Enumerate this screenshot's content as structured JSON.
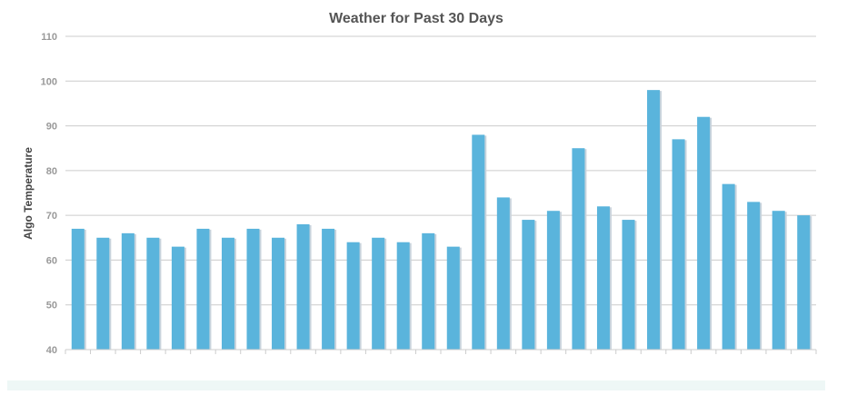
{
  "chart_data": {
    "type": "bar",
    "title": "Weather for Past 30 Days",
    "xlabel": "",
    "ylabel": "Algo Temperature",
    "ylim": [
      40,
      110
    ],
    "yticks": [
      40,
      50,
      60,
      70,
      80,
      90,
      100,
      110
    ],
    "grid": true,
    "legend": "none",
    "values": [
      67,
      65,
      66,
      65,
      63,
      67,
      65,
      67,
      65,
      68,
      67,
      64,
      65,
      64,
      66,
      63,
      88,
      74,
      69,
      71,
      85,
      72,
      69,
      98,
      87,
      92,
      77,
      73,
      71,
      70
    ],
    "colors": {
      "bar": "#5ab4dc",
      "bar_shadow": "#c8d3dc",
      "grid": "#cccccc",
      "axis": "#cccccc"
    }
  }
}
